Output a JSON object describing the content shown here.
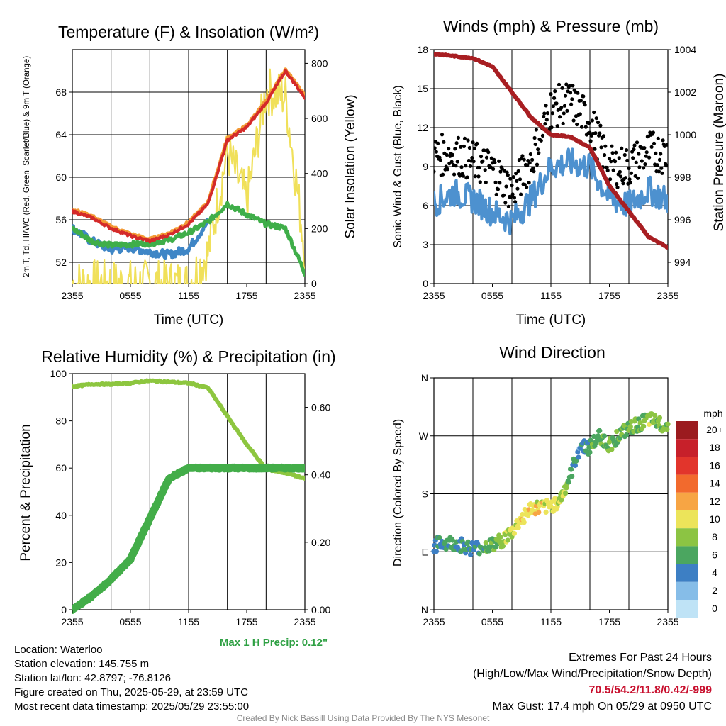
{
  "panels": {
    "temp": {
      "title": "Temperature (F) & Insolation (W/m²)",
      "ylabel_left": "2m T, Td, HI/WC (Red, Green, Scarlet/Blue) & 9m T (Orange)",
      "ylabel_right": "Solar Insolation (Yellow)",
      "xlabel": "Time (UTC)"
    },
    "wind": {
      "title": "Winds (mph) & Pressure (mb)",
      "ylabel_left": "Sonic Wind & Gust (Blue, Black)",
      "ylabel_right": "Station Pressure (Maroon)",
      "xlabel": "Time (UTC)"
    },
    "rh": {
      "title": "Relative Humidity (%) & Precipitation (in)",
      "ylabel_left": "Percent & Precipitation",
      "annotation": "Max 1 H Precip: 0.12\""
    },
    "dir": {
      "title": "Wind Direction",
      "ylabel_left": "Direction (Colored By Speed)",
      "legend_title": "mph",
      "legend_labels": [
        "20+",
        "18",
        "16",
        "14",
        "12",
        "10",
        "8",
        "6",
        "4",
        "2",
        "0"
      ],
      "legend_colors": [
        "#9b1b1f",
        "#c7202a",
        "#e2352c",
        "#f26a2d",
        "#f7a544",
        "#ece45a",
        "#8cc443",
        "#4ba660",
        "#3d7fc4",
        "#86bde8",
        "#bfe3f6"
      ]
    }
  },
  "info": {
    "location": "Location: Waterloo",
    "elevation": "Station elevation: 145.755 m",
    "latlon": "Station lat/lon: 42.8797; -76.8126",
    "created": "Figure created on Thu, 2025-05-29, at 23:59 UTC",
    "recent": "Most recent data timestamp: 2025/05/29 23:55:00"
  },
  "extremes": {
    "title": "Extremes For Past 24 Hours",
    "subtitle": "(High/Low/Max Wind/Precipitation/Snow Depth)",
    "values": "70.5/54.2/11.8/0.42/-999",
    "max_gust": "Max Gust: 17.4 mph On 05/29 at 0950 UTC"
  },
  "credit": "Created By Nick Bassill Using Data Provided By The NYS Mesonet",
  "chart_data": [
    {
      "type": "line",
      "x_ticks": [
        "2355",
        "0555",
        "1155",
        "1755",
        "2355"
      ],
      "hours": [
        0,
        2,
        4,
        6,
        8,
        10,
        12,
        14,
        16,
        18,
        20,
        22,
        24
      ],
      "ylim": [
        50,
        72
      ],
      "y_ticks": [
        52,
        56,
        60,
        64,
        68
      ],
      "ylim_right": [
        0,
        850
      ],
      "y_ticks_right": [
        0,
        200,
        400,
        600,
        800
      ],
      "series": [
        {
          "color": "#d42a2a",
          "values": [
            56.8,
            56.2,
            55.2,
            54.5,
            54.0,
            54.6,
            55.6,
            57.5,
            63.5,
            64.7,
            67.0,
            70.0,
            67.5
          ]
        },
        {
          "color": "#3fae49",
          "values": [
            55.2,
            54.0,
            53.6,
            53.7,
            53.8,
            54.1,
            54.8,
            55.8,
            57.5,
            56.5,
            55.6,
            55.2,
            51.0
          ]
        },
        {
          "color": "#3f86c6",
          "values": [
            55.2,
            54.0,
            53.2,
            53.4,
            53.0,
            52.7,
            53.3,
            55.8,
            null,
            null,
            null,
            null,
            null
          ]
        },
        {
          "color": "#f0e05a",
          "values": [
            0,
            0,
            0,
            0,
            0,
            0,
            0,
            110,
            480,
            300,
            700,
            680,
            120
          ]
        }
      ]
    },
    {
      "type": "line",
      "x_ticks": [
        "2355",
        "0555",
        "1155",
        "1755",
        "2355"
      ],
      "hours": [
        0,
        2,
        4,
        6,
        8,
        10,
        12,
        14,
        16,
        18,
        20,
        22,
        24
      ],
      "ylim": [
        0,
        18
      ],
      "y_ticks": [
        0,
        3,
        6,
        9,
        12,
        15,
        18
      ],
      "ylim_right": [
        993,
        1004
      ],
      "y_ticks_right": [
        994,
        996,
        998,
        1000,
        1002,
        1004
      ],
      "series": [
        {
          "color": "#4d91cf",
          "values": [
            6.2,
            7.0,
            6.5,
            5.5,
            4.8,
            6.5,
            9.0,
            9.3,
            9.0,
            6.6,
            6.0,
            7.2,
            6.4
          ]
        },
        {
          "color": "#000000",
          "values": [
            9.8,
            10.0,
            9.4,
            8.8,
            7.1,
            9.5,
            13.5,
            14.0,
            12.5,
            9.0,
            9.0,
            10.2,
            10.0
          ]
        },
        {
          "color": "#a81e22",
          "values": [
            1003.8,
            1003.7,
            1003.6,
            1003.2,
            1002.0,
            1000.8,
            1000.0,
            999.9,
            999.4,
            997.6,
            996.4,
            995.2,
            994.7
          ]
        }
      ]
    },
    {
      "type": "line",
      "x_ticks": [
        "2355",
        "0555",
        "1155",
        "1755",
        "2355"
      ],
      "hours": [
        0,
        2,
        4,
        6,
        8,
        10,
        12,
        14,
        16,
        18,
        20,
        22,
        24
      ],
      "ylim": [
        0,
        100
      ],
      "y_ticks": [
        0,
        20,
        40,
        60,
        80,
        100
      ],
      "ylim_right": [
        0,
        0.7
      ],
      "y_ticks_right": [
        "0.00",
        "0.20",
        "0.40",
        "0.60"
      ],
      "series": [
        {
          "color": "#8dc63f",
          "values": [
            94.5,
            95.5,
            95.5,
            96.0,
            97.0,
            96.5,
            96.0,
            94.0,
            82.0,
            70.0,
            59.5,
            58.0,
            55.5
          ]
        },
        {
          "color": "#43ad49",
          "values": [
            0.0,
            0.04,
            0.09,
            0.15,
            0.27,
            0.39,
            0.42,
            0.42,
            0.42,
            0.42,
            0.42,
            0.42,
            0.42
          ]
        }
      ]
    },
    {
      "type": "scatter",
      "x_ticks": [
        "2355",
        "0555",
        "1155",
        "1755",
        "2355"
      ],
      "y_ticks": [
        "N",
        "E",
        "S",
        "W",
        "N"
      ],
      "ylim": [
        0,
        360
      ],
      "hours": [
        0,
        1,
        2,
        3,
        4,
        5,
        6,
        7,
        8,
        9,
        10,
        11,
        12,
        13,
        14,
        15,
        16,
        17,
        18,
        19,
        20,
        21,
        22,
        23,
        24
      ],
      "direction": [
        100,
        104,
        103,
        100,
        95,
        98,
        100,
        108,
        120,
        142,
        158,
        158,
        160,
        172,
        208,
        255,
        252,
        270,
        255,
        272,
        280,
        288,
        295,
        290,
        285
      ],
      "speed": [
        4,
        5,
        6,
        5,
        4,
        6,
        7,
        8,
        9,
        10,
        10,
        10,
        9,
        10,
        6,
        4,
        6,
        7,
        7,
        7,
        8,
        7,
        8,
        7,
        8
      ]
    }
  ]
}
